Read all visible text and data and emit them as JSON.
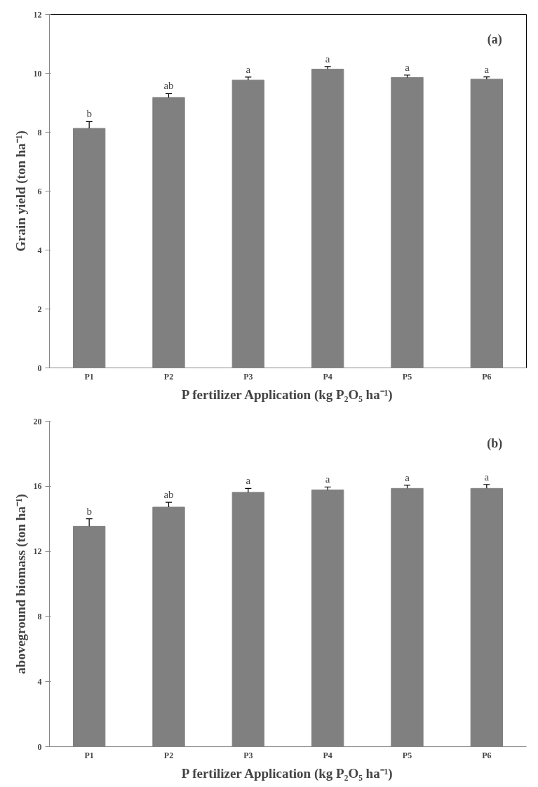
{
  "chart_data": [
    {
      "type": "bar",
      "xlabel": "P fertilizer Application (kg P₂O₅ ha⁻¹)",
      "ylabel": "Grain yield (ton ha⁻¹)",
      "categories": [
        "P1",
        "P2",
        "P3",
        "P4",
        "P5",
        "P6"
      ],
      "values": [
        8.13,
        9.18,
        9.77,
        10.14,
        9.86,
        9.8
      ],
      "errors": [
        0.23,
        0.13,
        0.1,
        0.09,
        0.08,
        0.08
      ],
      "color": "#808080",
      "ylim": [
        0,
        12
      ],
      "yticks": [
        0,
        2,
        4,
        6,
        8,
        10,
        12
      ],
      "grid": false,
      "annotations": [
        "(a)",
        {
          "text": "b",
          "x": "P1",
          "y": 8.36
        },
        {
          "text": "ab",
          "x": "P2",
          "y": 9.31
        },
        {
          "text": "a",
          "x": "P3",
          "y": 9.87
        },
        {
          "text": "a",
          "x": "P4",
          "y": 10.23
        },
        {
          "text": "a",
          "x": "P5",
          "y": 9.94
        },
        {
          "text": "a",
          "x": "P6",
          "y": 9.88
        }
      ]
    },
    {
      "type": "bar",
      "xlabel": "P fertilizer Application (kg P₂O₅ ha⁻¹)",
      "ylabel": "aboveground biomass (ton ha⁻¹)",
      "categories": [
        "P1",
        "P2",
        "P3",
        "P4",
        "P5",
        "P6"
      ],
      "values": [
        13.54,
        14.72,
        15.63,
        15.78,
        15.87,
        15.87
      ],
      "errors": [
        0.46,
        0.3,
        0.24,
        0.18,
        0.2,
        0.24
      ],
      "color": "#808080",
      "ylim": [
        0,
        20
      ],
      "yticks": [
        0,
        4,
        8,
        12,
        16,
        20
      ],
      "grid": false,
      "annotations": [
        "(b)",
        {
          "text": "b",
          "x": "P1",
          "y": 14.0
        },
        {
          "text": "ab",
          "x": "P2",
          "y": 15.02
        },
        {
          "text": "a",
          "x": "P3",
          "y": 15.87
        },
        {
          "text": "a",
          "x": "P4",
          "y": 15.96
        },
        {
          "text": "a",
          "x": "P5",
          "y": 16.07
        },
        {
          "text": "a",
          "x": "P6",
          "y": 16.11
        }
      ]
    }
  ]
}
